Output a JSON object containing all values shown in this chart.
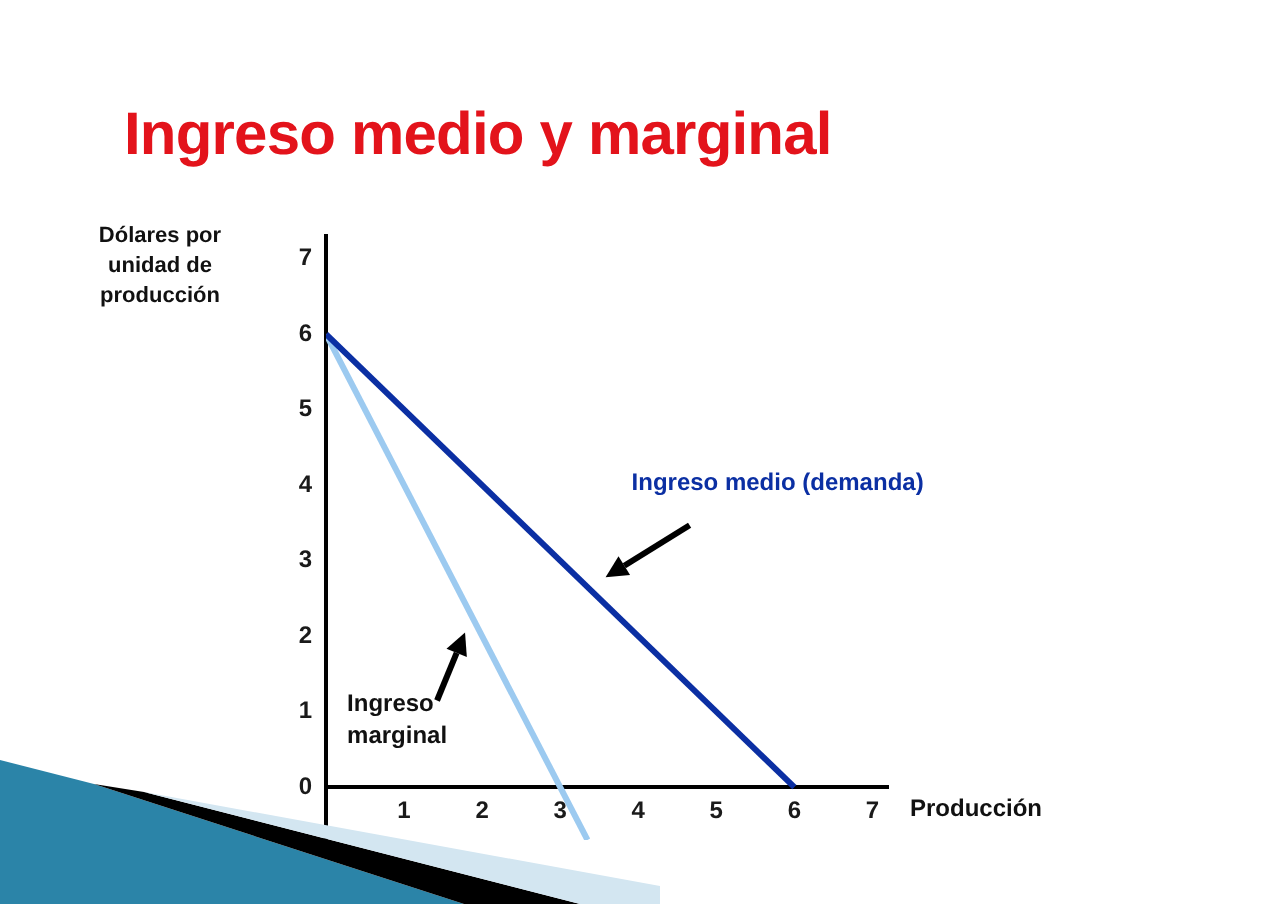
{
  "chart_data": {
    "type": "line",
    "title": "Ingreso medio y marginal",
    "ylabel": "Dólares por unidad de producción",
    "xlabel": "Producción",
    "series": [
      {
        "name": "Ingreso medio (demanda)",
        "color": "#0b2fa3",
        "x": [
          0,
          6
        ],
        "values": [
          6,
          0
        ]
      },
      {
        "name": "Ingreso marginal",
        "color": "#9ccaf0",
        "x": [
          0,
          3.35
        ],
        "values": [
          6,
          -0.7
        ]
      }
    ],
    "xlim": [
      0,
      7.2
    ],
    "ylim": [
      -0.7,
      7.3
    ],
    "xticks": [
      1,
      2,
      3,
      4,
      5,
      6,
      7
    ],
    "yticks": [
      0,
      1,
      2,
      3,
      4,
      5,
      6,
      7
    ]
  }
}
